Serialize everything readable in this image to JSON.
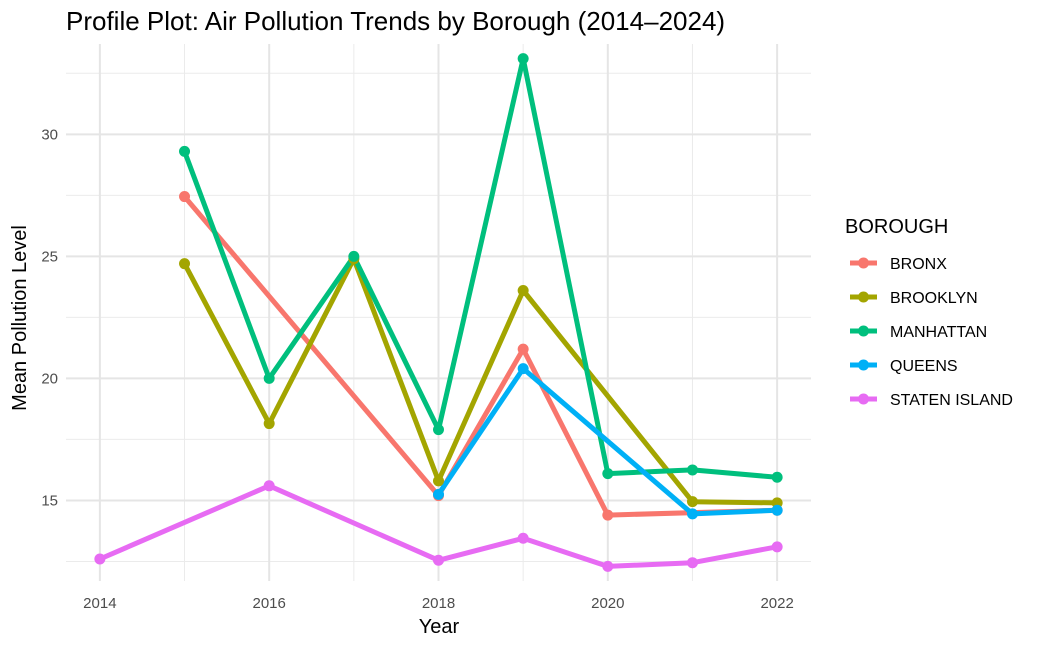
{
  "chart_data": {
    "type": "line",
    "title": "Profile Plot: Air Pollution Trends by Borough (2014–2024)",
    "xlabel": "Year",
    "ylabel": "Mean Pollution Level",
    "xlim": [
      2013.6,
      2022.4
    ],
    "ylim": [
      11.7,
      33.7
    ],
    "x_ticks": [
      2014,
      2016,
      2018,
      2020,
      2022
    ],
    "y_ticks": [
      15,
      20,
      25,
      30
    ],
    "grid": true,
    "legend": {
      "title": "BOROUGH",
      "placement": "right"
    },
    "series": [
      {
        "name": "BRONX",
        "color": "#F8766D",
        "points": [
          [
            2015,
            27.45
          ],
          [
            2018,
            15.2
          ],
          [
            2019,
            21.2
          ],
          [
            2020,
            14.4
          ],
          [
            2022,
            14.6
          ]
        ]
      },
      {
        "name": "BROOKLYN",
        "color": "#A3A500",
        "points": [
          [
            2015,
            24.7
          ],
          [
            2016,
            18.15
          ],
          [
            2017,
            24.9
          ],
          [
            2018,
            15.8
          ],
          [
            2019,
            23.6
          ],
          [
            2021,
            14.95
          ],
          [
            2022,
            14.9
          ]
        ]
      },
      {
        "name": "MANHATTAN",
        "color": "#00BF7D",
        "points": [
          [
            2015,
            29.3
          ],
          [
            2016,
            20.0
          ],
          [
            2017,
            25.0
          ],
          [
            2018,
            17.9
          ],
          [
            2019,
            33.1
          ],
          [
            2020,
            16.1
          ],
          [
            2021,
            16.25
          ],
          [
            2022,
            15.95
          ]
        ]
      },
      {
        "name": "QUEENS",
        "color": "#00B0F6",
        "points": [
          [
            2018,
            15.25
          ],
          [
            2019,
            20.4
          ],
          [
            2021,
            14.45
          ],
          [
            2022,
            14.6
          ]
        ]
      },
      {
        "name": "STATEN ISLAND",
        "color": "#E76BF3",
        "points": [
          [
            2014,
            12.6
          ],
          [
            2016,
            15.6
          ],
          [
            2018,
            12.55
          ],
          [
            2019,
            13.45
          ],
          [
            2020,
            12.3
          ],
          [
            2021,
            12.45
          ],
          [
            2022,
            13.1
          ]
        ]
      }
    ]
  }
}
